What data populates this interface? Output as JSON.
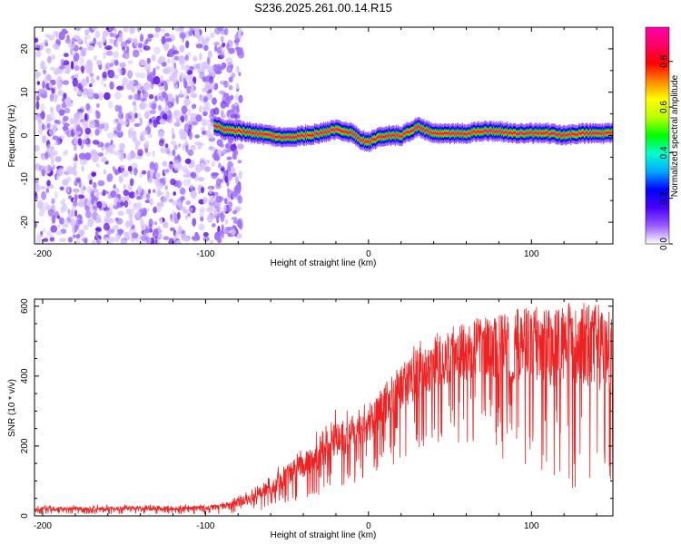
{
  "title": "S236.2025.261.00.14.R15",
  "chart_data": [
    {
      "type": "heatmap",
      "xlabel": "Height of straight line (km)",
      "ylabel": "Frequency (Hz)",
      "xlim": [
        -205,
        150
      ],
      "ylim": [
        -25,
        25
      ],
      "xticks": [
        -200,
        -100,
        0,
        100
      ],
      "yticks": [
        -20,
        -10,
        0,
        10,
        20
      ],
      "colorbar": {
        "label": "Normalized spectral amplitude",
        "range": [
          0,
          0.95
        ],
        "ticks": [
          0.0,
          0.2,
          0.4,
          0.6,
          0.8
        ],
        "colors": [
          "#ffffff",
          "#9b5cff",
          "#4a00ff",
          "#0000ff",
          "#00a8ff",
          "#00ffcc",
          "#00ff00",
          "#b8ff00",
          "#ffff00",
          "#ff8800",
          "#ff0000",
          "#ff0066",
          "#ff00aa"
        ]
      },
      "noise_region": {
        "x_range": [
          -205,
          -78
        ],
        "frequency_range": [
          -25,
          25
        ],
        "amplitude_typical": 0.1
      },
      "signal_track": {
        "x": [
          -95,
          -90,
          -80,
          -70,
          -60,
          -50,
          -40,
          -30,
          -20,
          -10,
          -5,
          0,
          5,
          10,
          20,
          25,
          30,
          40,
          50,
          60,
          70,
          80,
          90,
          100,
          110,
          120,
          130,
          140,
          150
        ],
        "frequency": [
          2.5,
          1.5,
          1.0,
          0.5,
          0.0,
          -0.5,
          0.0,
          0.5,
          1.5,
          0.5,
          -1.0,
          -1.5,
          -0.5,
          0.0,
          0.0,
          1.0,
          2.0,
          0.5,
          0.5,
          0.5,
          1.0,
          1.0,
          0.5,
          0.5,
          0.5,
          0.0,
          0.5,
          0.5,
          0.5
        ],
        "peak_amplitude": 0.9
      }
    },
    {
      "type": "line",
      "xlabel": "Height of straight line (km)",
      "ylabel": "SNR (10 * v/v)",
      "xlim": [
        -205,
        150
      ],
      "ylim": [
        0,
        620
      ],
      "xticks": [
        -200,
        -100,
        0,
        100
      ],
      "yticks": [
        0,
        200,
        400,
        600
      ],
      "series": [
        {
          "color": "#ee2222",
          "envelope": {
            "x": [
              -205,
              -180,
              -150,
              -120,
              -100,
              -90,
              -80,
              -70,
              -60,
              -50,
              -40,
              -30,
              -20,
              -10,
              0,
              10,
              20,
              30,
              40,
              50,
              60,
              70,
              80,
              90,
              100,
              110,
              120,
              130,
              140,
              150
            ],
            "upper": [
              30,
              32,
              33,
              33,
              35,
              40,
              60,
              80,
              130,
              180,
              210,
              250,
              330,
              300,
              330,
              400,
              450,
              500,
              520,
              540,
              560,
              570,
              580,
              590,
              600,
              600,
              610,
              610,
              610,
              600
            ],
            "lower": [
              5,
              5,
              5,
              5,
              5,
              5,
              5,
              10,
              20,
              30,
              50,
              60,
              80,
              90,
              110,
              140,
              150,
              180,
              190,
              200,
              200,
              200,
              150,
              120,
              100,
              90,
              80,
              70,
              60,
              50
            ],
            "typical": [
              18,
              19,
              20,
              20,
              22,
              25,
              35,
              55,
              80,
              110,
              140,
              170,
              200,
              230,
              260,
              330,
              380,
              420,
              450,
              470,
              490,
              500,
              510,
              520,
              520,
              520,
              525,
              525,
              525,
              520
            ]
          },
          "notch": {
            "x": 88,
            "value": 380
          }
        }
      ]
    }
  ]
}
